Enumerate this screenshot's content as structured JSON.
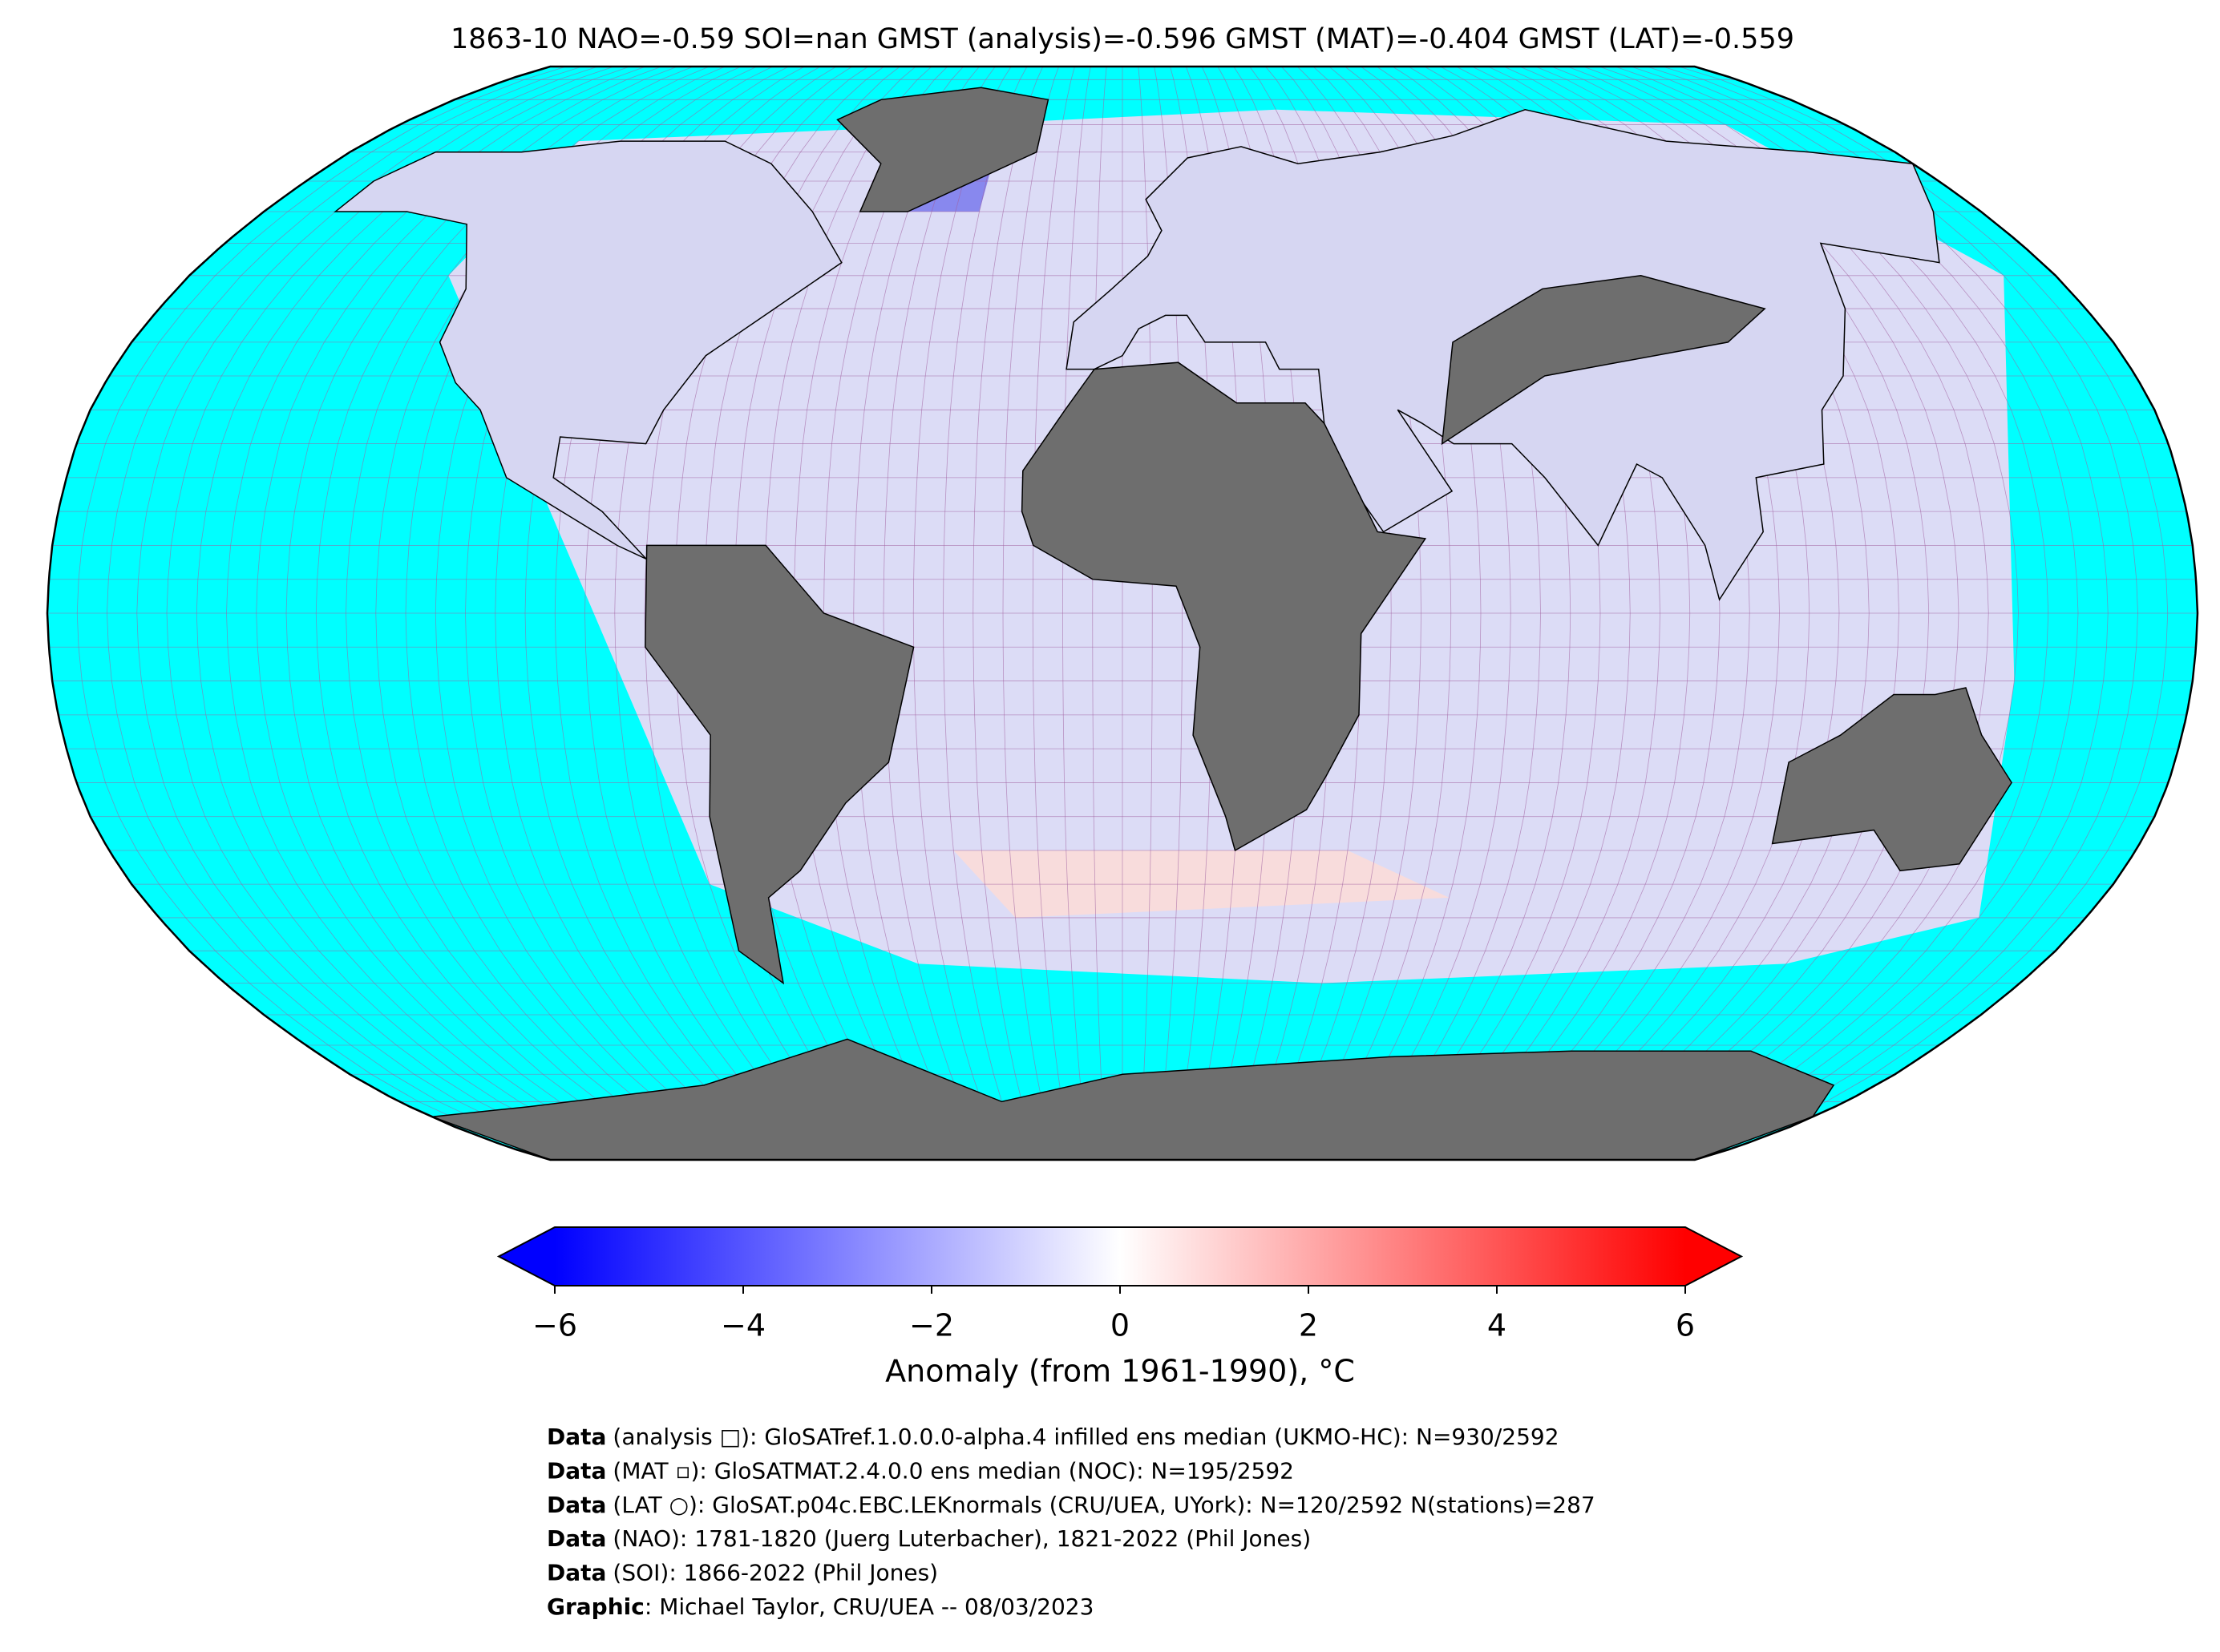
{
  "chart_data": {
    "type": "map",
    "title": "1863-10 NAO=-0.59 SOI=nan GMST (analysis)=-0.596 GMST (MAT)=-0.404 GMST (LAT)=-0.559",
    "ocean_color": "#00ffff",
    "missing_color": "#6e6e6e",
    "colorbar": {
      "label": "Anomaly (from 1961-1990), °C",
      "lim": [
        -6,
        6
      ],
      "colors": [
        "#0000ff",
        "#ffffff",
        "#ff0000"
      ],
      "ticks": [
        {
          "value": -6,
          "label": "−6"
        },
        {
          "value": -4,
          "label": "−4"
        },
        {
          "value": -2,
          "label": "−2"
        },
        0,
        2,
        4,
        6
      ]
    },
    "credits": [
      {
        "label": "Data",
        "text": "(analysis □): GloSATref.1.0.0.0-alpha.4 infilled ens median (UKMO-HC): N=930/2592"
      },
      {
        "label": "Data",
        "text": "(MAT ▫): GloSATMAT.2.4.0.0 ens median (NOC): N=195/2592"
      },
      {
        "label": "Data",
        "text": "(LAT ○): GloSAT.p04c.EBC.LEKnormals (CRU/UEA, UYork): N=120/2592 N(stations)=287"
      },
      {
        "label": "Data",
        "text": "(NAO): 1781-1820 (Juerg Luterbacher), 1821-2022 (Phil Jones)"
      },
      {
        "label": "Data",
        "text": "(SOI): 1866-2022 (Phil Jones)"
      },
      {
        "label": "Graphic",
        "text": ": Michael Taylor, CRU/UEA -- 08/03/2023"
      }
    ]
  }
}
